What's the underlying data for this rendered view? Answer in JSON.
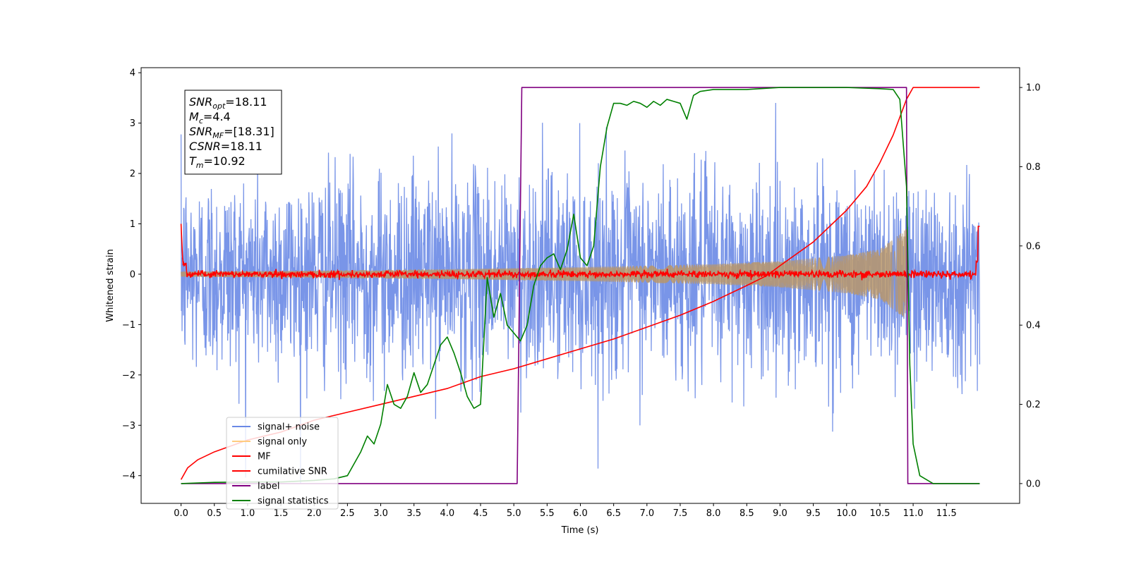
{
  "chart_data": {
    "type": "line",
    "xlabel": "Time (s)",
    "ylabel": "Whitened strain",
    "xlim": [
      -0.6,
      12.6
    ],
    "ylim": [
      -4.55,
      4.1
    ],
    "y2lim": [
      -0.05,
      1.05
    ],
    "x_ticks": [
      "0.0",
      "0.5",
      "1.0",
      "1.5",
      "2.0",
      "2.5",
      "3.0",
      "3.5",
      "4.0",
      "4.5",
      "5.0",
      "5.5",
      "6.0",
      "6.5",
      "7.0",
      "7.5",
      "8.0",
      "8.5",
      "9.0",
      "9.5",
      "10.0",
      "10.5",
      "11.0",
      "11.5"
    ],
    "y_ticks": [
      "4",
      "3",
      "2",
      "1",
      "0",
      "−1",
      "−2",
      "−3",
      "−4"
    ],
    "y2_ticks": [
      "1.0",
      "0.8",
      "0.6",
      "0.4",
      "0.2",
      "0.0"
    ],
    "grid": false,
    "legend_placement": "lower-left",
    "annotation": [
      {
        "sym": "SNR",
        "sub": "opt",
        "val": "=18.11"
      },
      {
        "sym": "M",
        "sub": "c",
        "val": "=4.4"
      },
      {
        "sym": "SNR",
        "sub": "MF",
        "val": "=[18.31]"
      },
      {
        "sym": "CSNR",
        "sub": "",
        "val": "=18.11"
      },
      {
        "sym": "T",
        "sub": "m",
        "val": "=10.92"
      }
    ],
    "series": [
      {
        "name": "signal+ noise",
        "color": "#6a89e6",
        "axis": "left",
        "description": "whitened noise, approx. std 1.0, range about -4.2 to 3.4",
        "t_range": [
          0.0,
          12.0
        ]
      },
      {
        "name": "signal only",
        "color": "#ffcc80",
        "axis": "left",
        "description": "chirp whose envelope grows from ~0.1 to ~0.85",
        "t_range": [
          0.0,
          10.9
        ],
        "envelope": {
          "t": [
            0.0,
            2.0,
            4.0,
            6.0,
            8.0,
            9.0,
            10.0,
            10.5,
            10.8,
            10.9
          ],
          "amp": [
            0.05,
            0.07,
            0.1,
            0.14,
            0.2,
            0.26,
            0.38,
            0.5,
            0.8,
            0.9
          ]
        }
      },
      {
        "name": "MF",
        "color": "#ff0000",
        "axis": "left",
        "description": "matched-filter output, approximately 0 with small noise; edge spikes ~1.0 at t=0 and t=12",
        "t_range": [
          0.0,
          12.0
        ]
      },
      {
        "name": "cumilative SNR",
        "color": "#ff0000",
        "axis": "right",
        "t": [
          0.0,
          0.1,
          0.25,
          0.5,
          1.0,
          1.5,
          2.0,
          2.5,
          3.0,
          3.5,
          4.0,
          4.5,
          5.0,
          5.5,
          6.0,
          6.5,
          7.0,
          7.5,
          8.0,
          8.5,
          8.8,
          9.0,
          9.5,
          10.0,
          10.3,
          10.5,
          10.7,
          10.9,
          11.0,
          12.0
        ],
        "values": [
          0.01,
          0.04,
          0.06,
          0.08,
          0.11,
          0.13,
          0.16,
          0.18,
          0.2,
          0.22,
          0.24,
          0.27,
          0.29,
          0.315,
          0.34,
          0.365,
          0.395,
          0.425,
          0.46,
          0.5,
          0.525,
          0.55,
          0.61,
          0.69,
          0.75,
          0.81,
          0.88,
          0.97,
          1.0,
          1.0
        ]
      },
      {
        "name": "label",
        "color": "#800080",
        "axis": "right",
        "t": [
          0.0,
          5.05,
          5.12,
          10.9,
          10.92,
          12.0
        ],
        "values": [
          0.0,
          0.0,
          1.0,
          1.0,
          0.0,
          0.0
        ]
      },
      {
        "name": "signal statistics",
        "color": "#008000",
        "axis": "right",
        "t": [
          0.0,
          0.5,
          1.0,
          1.5,
          2.0,
          2.3,
          2.5,
          2.7,
          2.8,
          2.9,
          3.0,
          3.1,
          3.2,
          3.3,
          3.4,
          3.5,
          3.6,
          3.7,
          3.8,
          3.9,
          4.0,
          4.1,
          4.2,
          4.3,
          4.4,
          4.5,
          4.6,
          4.7,
          4.8,
          4.9,
          5.0,
          5.1,
          5.2,
          5.3,
          5.4,
          5.5,
          5.6,
          5.7,
          5.8,
          5.9,
          6.0,
          6.1,
          6.2,
          6.3,
          6.4,
          6.5,
          6.6,
          6.7,
          6.8,
          6.9,
          7.0,
          7.1,
          7.2,
          7.3,
          7.4,
          7.5,
          7.6,
          7.7,
          7.8,
          8.0,
          8.5,
          9.0,
          9.5,
          10.0,
          10.5,
          10.7,
          10.8,
          10.9,
          10.95,
          11.0,
          11.1,
          11.3,
          12.0
        ],
        "values": [
          0.0,
          0.003,
          0.004,
          0.004,
          0.008,
          0.012,
          0.02,
          0.08,
          0.12,
          0.1,
          0.15,
          0.25,
          0.2,
          0.19,
          0.22,
          0.28,
          0.23,
          0.25,
          0.3,
          0.35,
          0.37,
          0.33,
          0.28,
          0.22,
          0.19,
          0.2,
          0.52,
          0.42,
          0.48,
          0.4,
          0.38,
          0.36,
          0.4,
          0.5,
          0.55,
          0.57,
          0.58,
          0.54,
          0.59,
          0.68,
          0.57,
          0.55,
          0.6,
          0.8,
          0.9,
          0.96,
          0.96,
          0.955,
          0.965,
          0.96,
          0.95,
          0.965,
          0.955,
          0.97,
          0.965,
          0.96,
          0.92,
          0.98,
          0.99,
          0.995,
          0.995,
          1.0,
          1.0,
          1.0,
          0.997,
          0.995,
          0.97,
          0.75,
          0.3,
          0.1,
          0.02,
          0.0,
          0.0
        ]
      }
    ]
  }
}
